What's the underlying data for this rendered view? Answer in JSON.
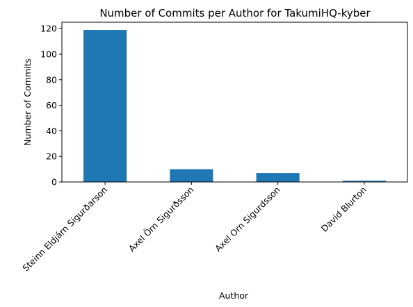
{
  "chart_data": {
    "type": "bar",
    "title": "Number of Commits per Author for TakumiHQ-kyber",
    "xlabel": "Author",
    "ylabel": "Number of Commits",
    "categories": [
      "Steinn Eldjárn Sigurðarson",
      "Axel Örn Sigurðsson",
      "Axel Orn Sigurdsson",
      "David Blurton"
    ],
    "values": [
      119,
      10,
      7,
      1
    ],
    "ylim": [
      0,
      125
    ],
    "yticks": [
      0,
      20,
      40,
      60,
      80,
      100,
      120
    ],
    "bar_color": "#1f77b4",
    "grid": false,
    "legend": "none"
  }
}
